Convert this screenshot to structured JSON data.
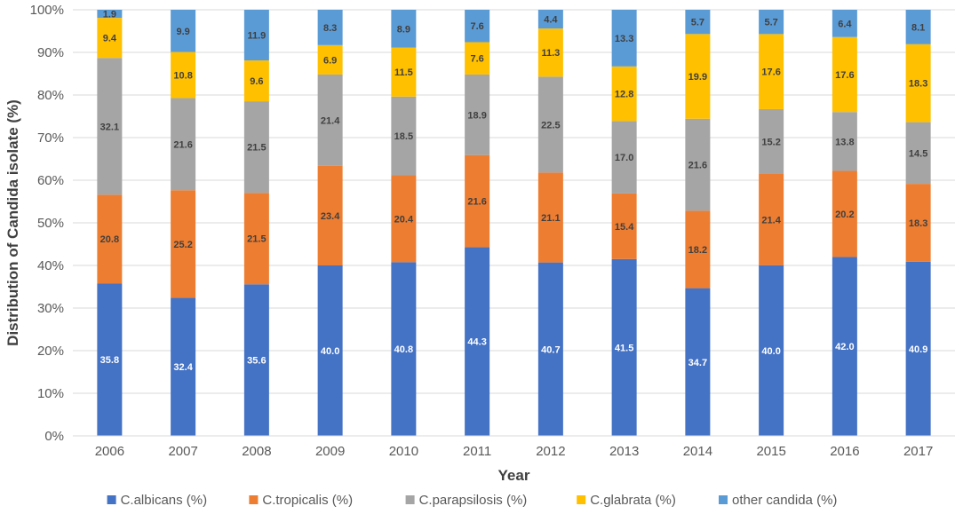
{
  "chart_data": {
    "type": "bar",
    "stacked": true,
    "percent_stacked": true,
    "title": "",
    "xlabel": "Year",
    "ylabel": "Distribution of Candida isolate (%)",
    "ylim": [
      0,
      100
    ],
    "yticks": [
      "0%",
      "10%",
      "20%",
      "30%",
      "40%",
      "50%",
      "60%",
      "70%",
      "80%",
      "90%",
      "100%"
    ],
    "grid": true,
    "legend_position": "bottom",
    "categories": [
      "2006",
      "2007",
      "2008",
      "2009",
      "2010",
      "2011",
      "2012",
      "2013",
      "2014",
      "2015",
      "2016",
      "2017"
    ],
    "series": [
      {
        "name": "C.albicans (%)",
        "color": "#4472C4",
        "label_color": "#ffffff",
        "values": [
          35.8,
          32.4,
          35.6,
          40.0,
          40.8,
          44.3,
          40.7,
          41.5,
          34.7,
          40.0,
          42.0,
          40.9
        ],
        "labels": [
          "35.8",
          "32.4",
          "35.6",
          "40.0",
          "40.8",
          "44.3",
          "40.7",
          "41.5",
          "34.7",
          "40.0",
          "42.0",
          "40.9"
        ]
      },
      {
        "name": "C.tropicalis (%)",
        "color": "#ED7D31",
        "label_color": "#404040",
        "values": [
          20.8,
          25.2,
          21.5,
          23.4,
          20.4,
          21.6,
          21.1,
          15.4,
          18.2,
          21.4,
          20.2,
          18.3
        ],
        "labels": [
          "20.8",
          "25.2",
          "21.5",
          "23.4",
          "20.4",
          "21.6",
          "21.1",
          "15.4",
          "18.2",
          "21.4",
          "20.2",
          "18.3"
        ]
      },
      {
        "name": "C.parapsilosis (%)",
        "color": "#A5A5A5",
        "label_color": "#404040",
        "values": [
          32.1,
          21.6,
          21.5,
          21.4,
          18.5,
          18.9,
          22.5,
          17.0,
          21.6,
          15.2,
          13.8,
          14.5
        ],
        "labels": [
          "32.1",
          "21.6",
          "21.5",
          "21.4",
          "18.5",
          "18.9",
          "22.5",
          "17.0",
          "21.6",
          "15.2",
          "13.8",
          "14.5"
        ]
      },
      {
        "name": "C.glabrata (%)",
        "color": "#FFC000",
        "label_color": "#404040",
        "values": [
          9.4,
          10.8,
          9.6,
          6.9,
          11.5,
          7.6,
          11.3,
          12.8,
          19.9,
          17.6,
          17.6,
          18.3
        ],
        "labels": [
          "9.4",
          "10.8",
          "9.6",
          "6.9",
          "11.5",
          "7.6",
          "11.3",
          "12.8",
          "19.9",
          "17.6",
          "17.6",
          "18.3"
        ]
      },
      {
        "name": "other candida (%)",
        "color": "#5B9BD5",
        "label_color": "#404040",
        "values": [
          1.9,
          9.9,
          11.9,
          8.3,
          8.9,
          7.6,
          4.4,
          13.3,
          5.7,
          5.7,
          6.4,
          8.1
        ],
        "labels": [
          "1.9",
          "9.9",
          "11.9",
          "8.3",
          "8.9",
          "7.6",
          "4.4",
          "13.3",
          "5.7",
          "5.7",
          "6.4",
          "8.1"
        ]
      }
    ]
  }
}
